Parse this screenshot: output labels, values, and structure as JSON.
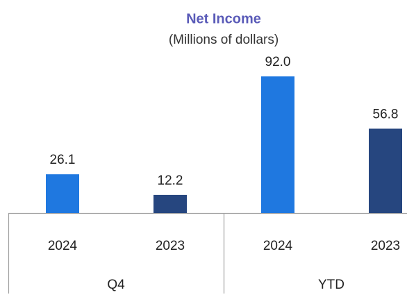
{
  "chart_data": {
    "type": "bar",
    "title": "Net Income",
    "subtitle": "(Millions of dollars)",
    "categories": [
      "2024",
      "2023",
      "2024",
      "2023"
    ],
    "groups": [
      "Q4",
      "YTD"
    ],
    "values": [
      26.1,
      12.2,
      92.0,
      56.8
    ],
    "value_labels": [
      "26.1",
      "12.2",
      "92.0",
      "56.8"
    ],
    "colors": [
      "#1f78e0",
      "#26467f",
      "#1f78e0",
      "#26467f"
    ]
  }
}
